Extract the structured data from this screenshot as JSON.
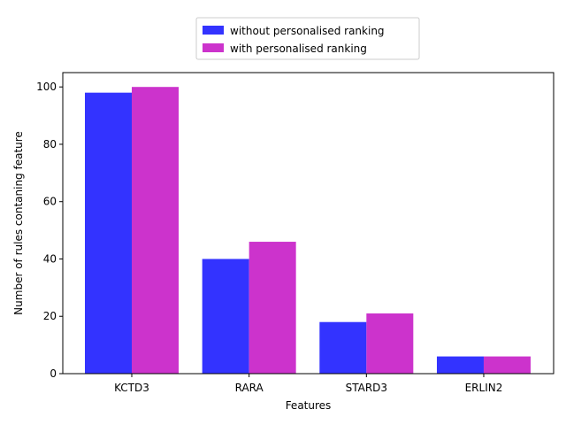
{
  "chart_data": {
    "type": "bar",
    "title": "",
    "xlabel": "Features",
    "ylabel": "Number of rules contaning feature",
    "categories": [
      "KCTD3",
      "RARA",
      "STARD3",
      "ERLIN2"
    ],
    "series": [
      {
        "name": "without personalised ranking",
        "values": [
          98,
          40,
          18,
          6
        ],
        "color": "#3333ff"
      },
      {
        "name": "with personalised ranking",
        "values": [
          100,
          46,
          21,
          6
        ],
        "color": "#cc33cc"
      }
    ],
    "ylim": [
      0,
      105
    ],
    "yticks": [
      0,
      20,
      40,
      60,
      80,
      100
    ],
    "grid": false,
    "legend_position": "top-center"
  }
}
